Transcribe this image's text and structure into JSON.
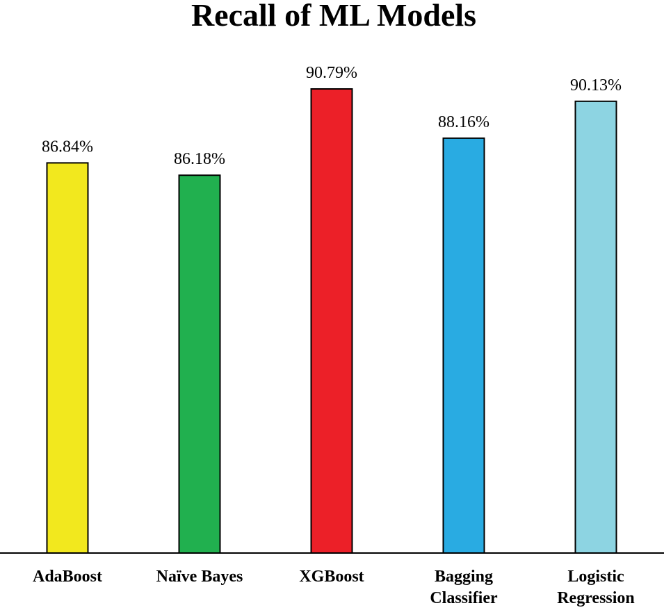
{
  "chart_data": {
    "type": "bar",
    "title": "Recall of ML Models",
    "xlabel": "",
    "ylabel": "",
    "categories": [
      "AdaBoost",
      "Naïve Bayes",
      "XGBoost",
      "Bagging Classifier",
      "Logistic Regression"
    ],
    "category_lines": [
      [
        "AdaBoost"
      ],
      [
        "Naïve Bayes"
      ],
      [
        "XGBoost"
      ],
      [
        "Bagging",
        "Classifier"
      ],
      [
        "Logistic",
        "Regression"
      ]
    ],
    "values": [
      86.84,
      86.18,
      90.79,
      88.16,
      90.13
    ],
    "value_labels": [
      "86.84%",
      "86.18%",
      "90.79%",
      "88.16%",
      "90.13%"
    ],
    "colors": [
      "#f2e81e",
      "#21b04f",
      "#ec2028",
      "#29abe2",
      "#8dd4e2"
    ],
    "ylim": [
      66,
      94
    ],
    "grid": false,
    "legend": "none"
  }
}
